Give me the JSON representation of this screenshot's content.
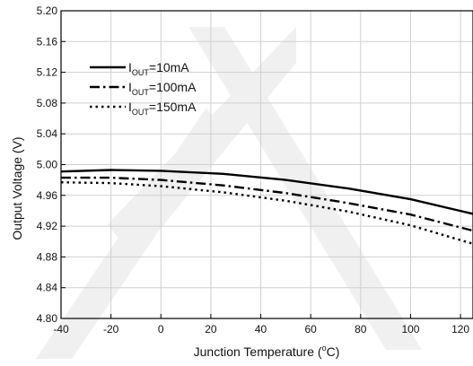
{
  "chart_data": {
    "type": "line",
    "xlabel": "Junction Temperature (",
    "xlabel_unit_sup": "o",
    "xlabel_unit_tail": "C)",
    "ylabel": "Output Voltage (V)",
    "xlim": [
      -40,
      125
    ],
    "ylim": [
      4.8,
      5.2
    ],
    "x_ticks": [
      -40,
      -20,
      0,
      20,
      40,
      60,
      80,
      100,
      120
    ],
    "y_ticks": [
      "4.80",
      "4.84",
      "4.88",
      "4.92",
      "4.96",
      "5.00",
      "5.04",
      "5.08",
      "5.12",
      "5.16",
      "5.20"
    ],
    "grid": true,
    "legend_position": "top-left",
    "series": [
      {
        "name": "I",
        "name_sub": "OUT",
        "name_tail": "=10mA",
        "style": "solid",
        "x": [
          -40,
          -20,
          0,
          25,
          50,
          75,
          100,
          125
        ],
        "y": [
          4.991,
          4.993,
          4.992,
          4.988,
          4.98,
          4.969,
          4.955,
          4.936
        ]
      },
      {
        "name": "I",
        "name_sub": "OUT",
        "name_tail": "=100mA",
        "style": "dash-dot",
        "x": [
          -40,
          -20,
          0,
          25,
          50,
          75,
          100,
          125
        ],
        "y": [
          4.983,
          4.983,
          4.98,
          4.973,
          4.963,
          4.95,
          4.935,
          4.914
        ]
      },
      {
        "name": "I",
        "name_sub": "OUT",
        "name_tail": "=150mA",
        "style": "dotted",
        "x": [
          -40,
          -20,
          0,
          25,
          50,
          75,
          100,
          125
        ],
        "y": [
          4.977,
          4.976,
          4.972,
          4.964,
          4.953,
          4.939,
          4.921,
          4.897
        ]
      }
    ]
  }
}
